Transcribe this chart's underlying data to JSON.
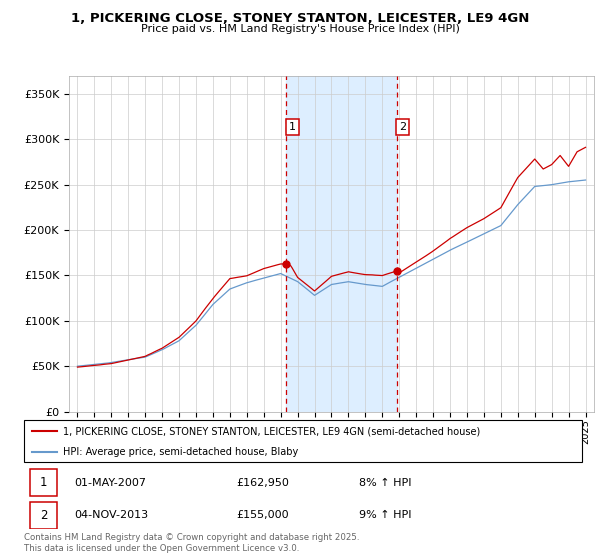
{
  "title": "1, PICKERING CLOSE, STONEY STANTON, LEICESTER, LE9 4GN",
  "subtitle": "Price paid vs. HM Land Registry's House Price Index (HPI)",
  "legend_line1": "1, PICKERING CLOSE, STONEY STANTON, LEICESTER, LE9 4GN (semi-detached house)",
  "legend_line2": "HPI: Average price, semi-detached house, Blaby",
  "sale1_date": "01-MAY-2007",
  "sale1_price": "£162,950",
  "sale1_hpi": "8% ↑ HPI",
  "sale2_date": "04-NOV-2013",
  "sale2_price": "£155,000",
  "sale2_hpi": "9% ↑ HPI",
  "footer": "Contains HM Land Registry data © Crown copyright and database right 2025.\nThis data is licensed under the Open Government Licence v3.0.",
  "red_color": "#cc0000",
  "blue_color": "#6699cc",
  "shade_color": "#ddeeff",
  "background_color": "#ffffff",
  "grid_color": "#cccccc",
  "ylim": [
    0,
    370000
  ],
  "yticks": [
    0,
    50000,
    100000,
    150000,
    200000,
    250000,
    300000,
    350000
  ],
  "sale1_x": 2007.33,
  "sale1_y": 162950,
  "sale2_x": 2013.84,
  "sale2_y": 155000,
  "xmin": 1994.5,
  "xmax": 2025.5,
  "hpi_anchors": {
    "1995": 50000,
    "1996": 52000,
    "1997": 54000,
    "1998": 57000,
    "1999": 60000,
    "2000": 68000,
    "2001": 78000,
    "2002": 95000,
    "2003": 118000,
    "2004": 135000,
    "2005": 142000,
    "2006": 147000,
    "2007": 152000,
    "2008": 143000,
    "2009": 128000,
    "2010": 140000,
    "2011": 143000,
    "2012": 140000,
    "2013": 138000,
    "2014": 148000,
    "2015": 158000,
    "2016": 168000,
    "2017": 178000,
    "2018": 187000,
    "2019": 196000,
    "2020": 205000,
    "2021": 228000,
    "2022": 248000,
    "2023": 250000,
    "2024": 253000,
    "2025": 255000
  },
  "prop_anchors": {
    "1995": 49000,
    "1996": 51000,
    "1997": 53000,
    "1998": 57000,
    "1999": 61000,
    "2000": 70000,
    "2001": 82000,
    "2002": 100000,
    "2003": 125000,
    "2004": 147000,
    "2005": 150000,
    "2006": 158000,
    "2007.0": 163000,
    "2007.33": 162950,
    "2007.6": 161000,
    "2008": 148000,
    "2009": 133000,
    "2010": 149000,
    "2011": 154000,
    "2012": 151000,
    "2013.0": 150000,
    "2013.84": 155000,
    "2014": 153000,
    "2015": 165000,
    "2016": 177000,
    "2017": 191000,
    "2018": 203000,
    "2019": 213000,
    "2020": 225000,
    "2021": 258000,
    "2022": 278000,
    "2022.5": 267000,
    "2023": 272000,
    "2023.5": 282000,
    "2024": 270000,
    "2024.5": 286000,
    "2025": 291000
  },
  "noise_seed_hpi": 10,
  "noise_seed_prop": 20,
  "hpi_noise_scale": 800,
  "prop_noise_scale": 1200
}
